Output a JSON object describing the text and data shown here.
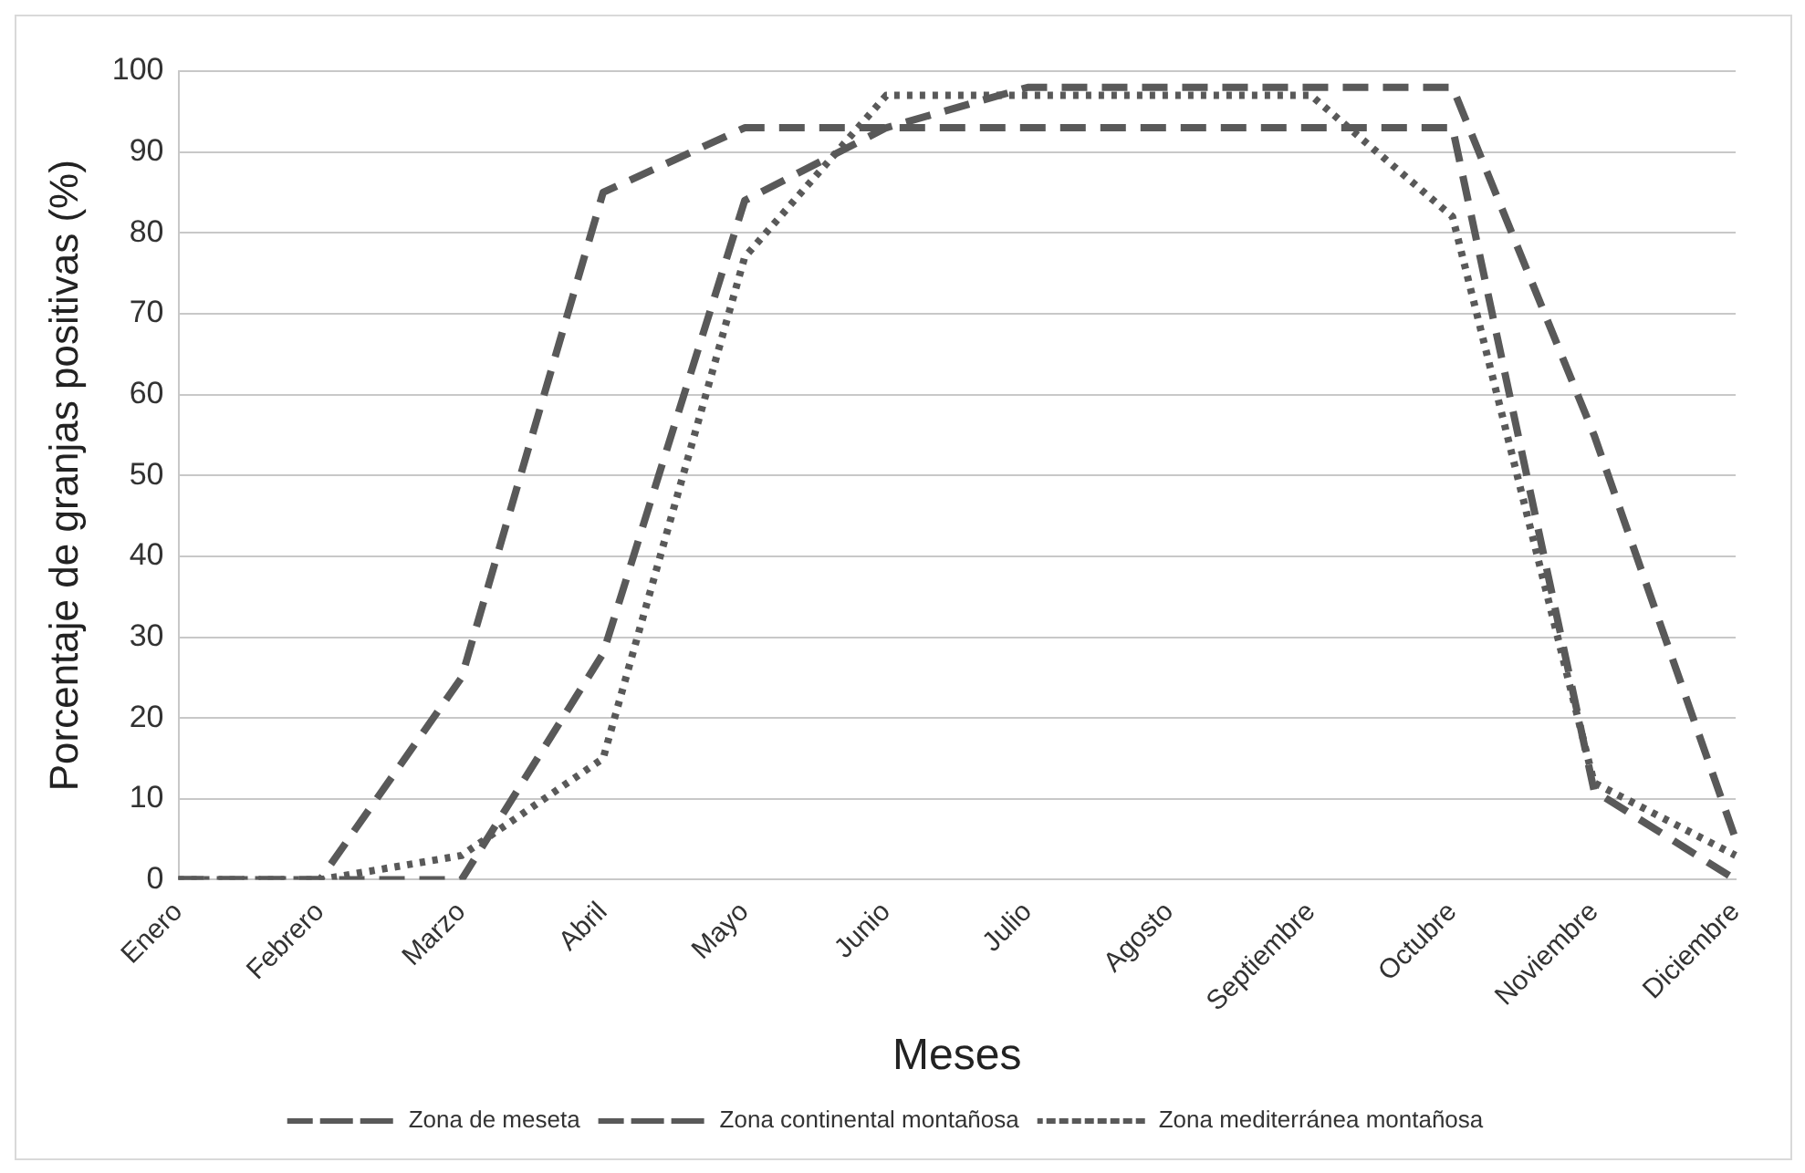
{
  "chart_data": {
    "type": "line",
    "xlabel": "Meses",
    "ylabel": "Porcentaje de granjas positivas (%)",
    "categories": [
      "Enero",
      "Febrero",
      "Marzo",
      "Abril",
      "Mayo",
      "Junio",
      "Julio",
      "Agosto",
      "Septiembre",
      "Octubre",
      "Noviembre",
      "Diciembre"
    ],
    "series": [
      {
        "name": "Zona de meseta",
        "color": "#595959",
        "line_style": "dashed",
        "values": [
          0,
          0,
          25,
          85,
          93,
          93,
          93,
          93,
          93,
          93,
          11,
          0
        ]
      },
      {
        "name": "Zona continental montañosa",
        "color": "#595959",
        "line_style": "dashed",
        "values": [
          0,
          0,
          0,
          28,
          84,
          93,
          98,
          98,
          98,
          98,
          55,
          5
        ]
      },
      {
        "name": "Zona mediterránea montañosa",
        "color": "#595959",
        "line_style": "dotted",
        "values": [
          0,
          0,
          3,
          15,
          77,
          97,
          97,
          97,
          97,
          82,
          12,
          3
        ]
      }
    ],
    "ylim": [
      0,
      100
    ],
    "yticks": [
      0,
      10,
      20,
      30,
      40,
      50,
      60,
      70,
      80,
      90,
      100
    ],
    "grid": "y",
    "legend": "bottom",
    "marker": "none"
  }
}
